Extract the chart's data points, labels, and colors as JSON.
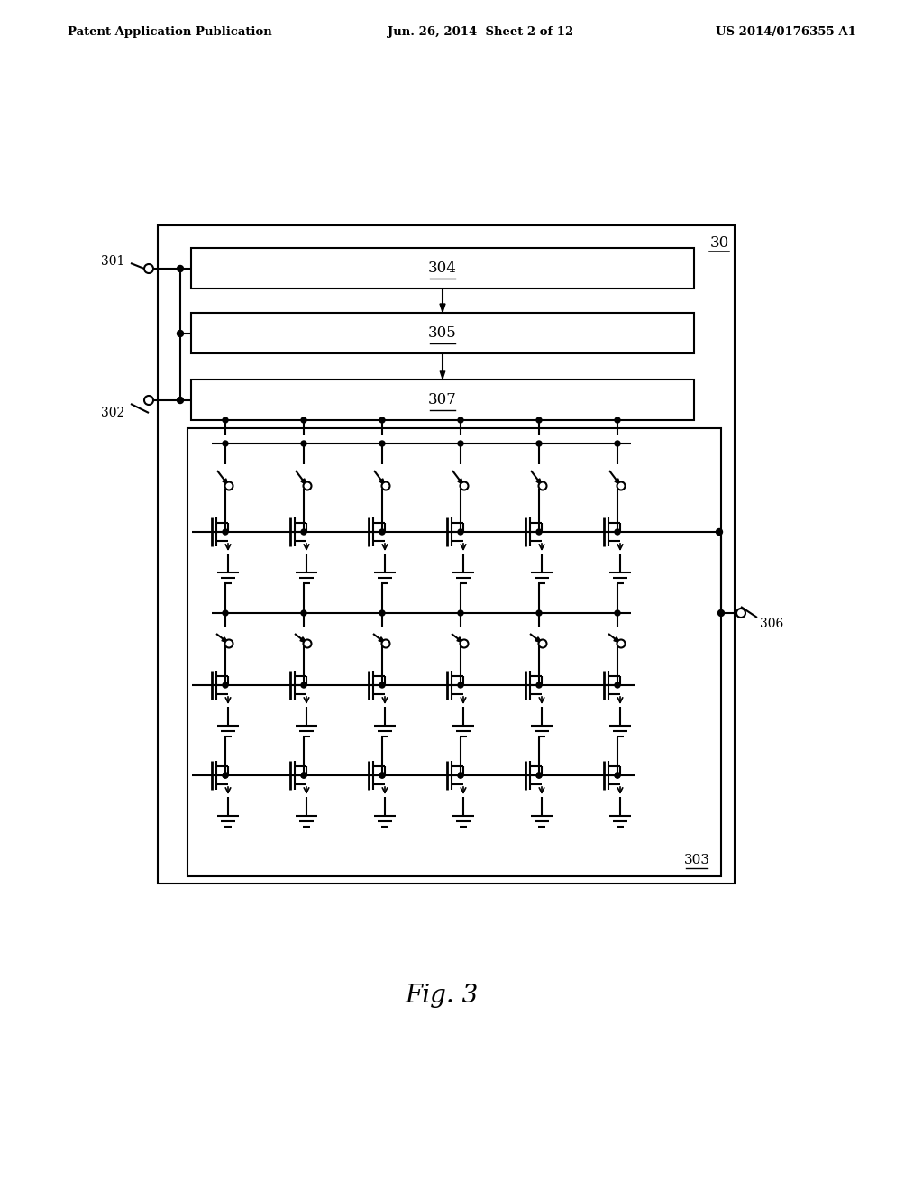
{
  "bg": "#ffffff",
  "lw": 1.5,
  "lc": "#000000",
  "header_left": "Patent Application Publication",
  "header_mid": "Jun. 26, 2014  Sheet 2 of 12",
  "header_right": "US 2014/0176355 A1",
  "fig_caption": "Fig. 3",
  "label_301": "301",
  "label_302": "302",
  "label_30": "30",
  "label_304": "304",
  "label_305": "305",
  "label_307": "307",
  "label_303": "303",
  "label_306": "306",
  "n_cols": 6
}
